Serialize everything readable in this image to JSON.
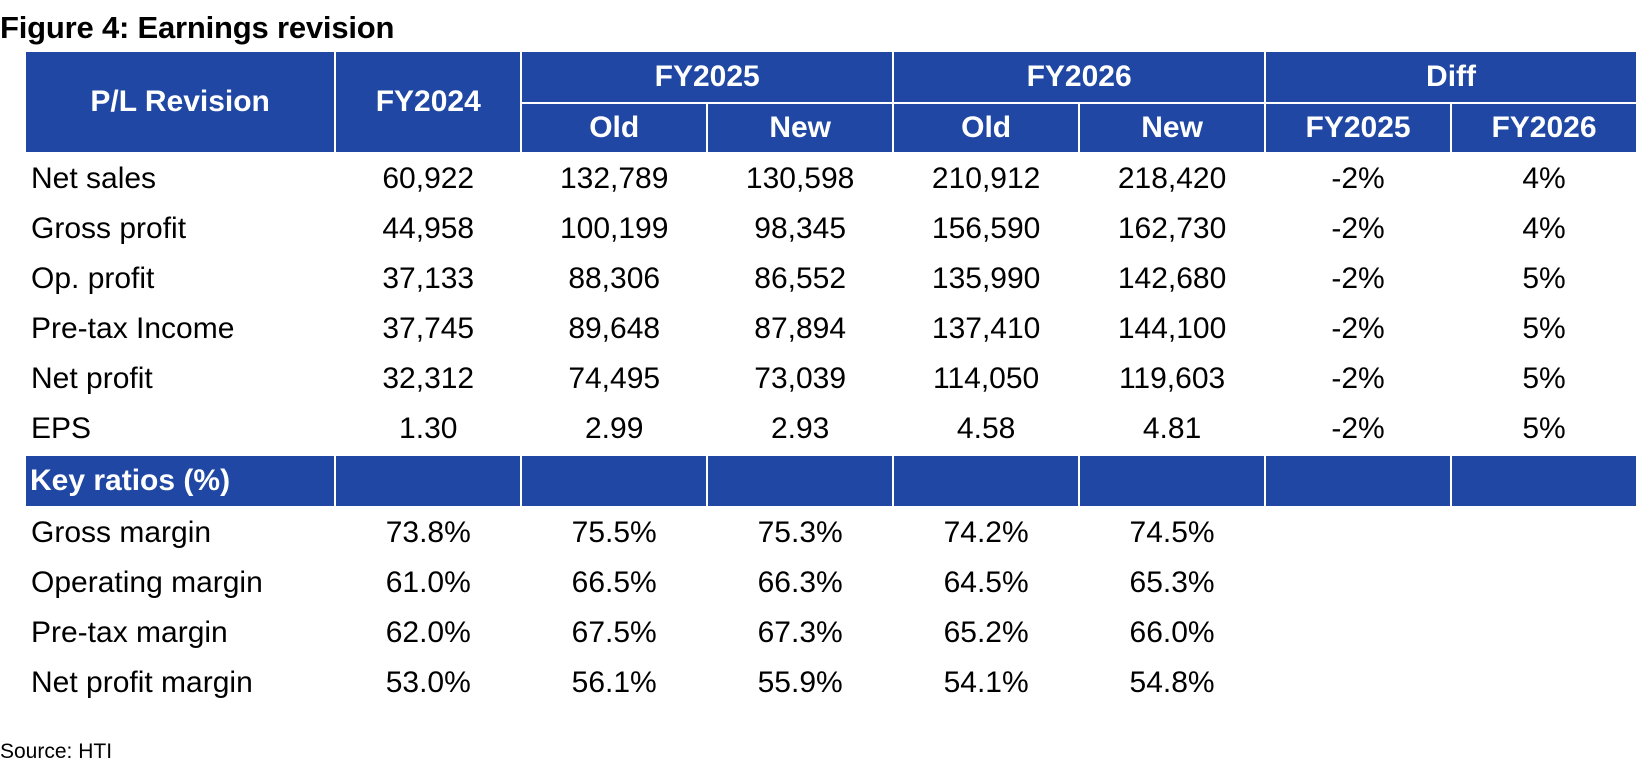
{
  "title": "Figure 4: Earnings revision",
  "source": "Source: HTI",
  "header": {
    "pl_revision": "P/L Revision",
    "fy2024": "FY2024",
    "fy2025": "FY2025",
    "fy2026": "FY2026",
    "diff": "Diff",
    "old": "Old",
    "new": "New",
    "diff_fy2025": "FY2025",
    "diff_fy2026": "FY2026"
  },
  "pl_rows": [
    {
      "label": "Net sales",
      "values": [
        "60,922",
        "132,789",
        "130,598",
        "210,912",
        "218,420",
        "-2%",
        "4%"
      ]
    },
    {
      "label": "Gross profit",
      "values": [
        "44,958",
        "100,199",
        "98,345",
        "156,590",
        "162,730",
        "-2%",
        "4%"
      ]
    },
    {
      "label": "Op. profit",
      "values": [
        "37,133",
        "88,306",
        "86,552",
        "135,990",
        "142,680",
        "-2%",
        "5%"
      ]
    },
    {
      "label": "Pre-tax Income",
      "values": [
        "37,745",
        "89,648",
        "87,894",
        "137,410",
        "144,100",
        "-2%",
        "5%"
      ]
    },
    {
      "label": "Net profit",
      "values": [
        "32,312",
        "74,495",
        "73,039",
        "114,050",
        "119,603",
        "-2%",
        "5%"
      ]
    },
    {
      "label": "EPS",
      "values": [
        "1.30",
        "2.99",
        "2.93",
        "4.58",
        "4.81",
        "-2%",
        "5%"
      ]
    }
  ],
  "key_ratios_label": "Key ratios (%)",
  "ratio_rows": [
    {
      "label": "Gross margin",
      "values": [
        "73.8%",
        "75.5%",
        "75.3%",
        "74.2%",
        "74.5%",
        "",
        ""
      ]
    },
    {
      "label": "Operating margin",
      "values": [
        "61.0%",
        "66.5%",
        "66.3%",
        "64.5%",
        "65.3%",
        "",
        ""
      ]
    },
    {
      "label": "Pre-tax margin",
      "values": [
        "62.0%",
        "67.5%",
        "67.3%",
        "65.2%",
        "66.0%",
        "",
        ""
      ]
    },
    {
      "label": "Net profit margin",
      "values": [
        "53.0%",
        "56.1%",
        "55.9%",
        "54.1%",
        "54.8%",
        "",
        ""
      ]
    }
  ]
}
